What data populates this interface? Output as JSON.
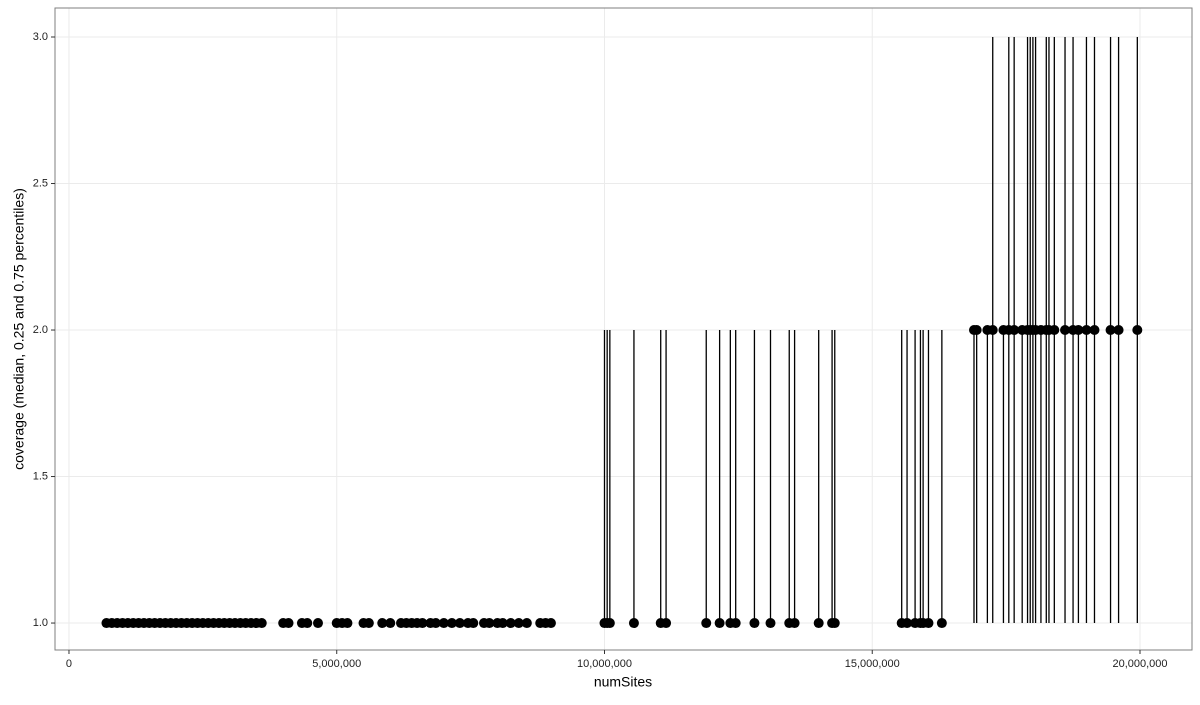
{
  "chart_data": {
    "type": "pointrange",
    "x_label": "numSites",
    "y_label": "coverage (median, 0.25 and 0.75 percentiles)",
    "x": [
      700000,
      800000,
      900000,
      1000000,
      1100000,
      1200000,
      1300000,
      1400000,
      1500000,
      1600000,
      1700000,
      1800000,
      1900000,
      2000000,
      2100000,
      2200000,
      2300000,
      2400000,
      2500000,
      2600000,
      2700000,
      2800000,
      2900000,
      3000000,
      3100000,
      3200000,
      3300000,
      3400000,
      3500000,
      3600000,
      4000000,
      4100000,
      4350000,
      4450000,
      4650000,
      5000000,
      5100000,
      5200000,
      5500000,
      5600000,
      5850000,
      6000000,
      6200000,
      6300000,
      6400000,
      6500000,
      6600000,
      6750000,
      6850000,
      7000000,
      7150000,
      7300000,
      7450000,
      7550000,
      7750000,
      7850000,
      8000000,
      8100000,
      8250000,
      8400000,
      8550000,
      8800000,
      8900000,
      9000000,
      10000000,
      10050000,
      10100000,
      10550000,
      11050000,
      11150000,
      11900000,
      12150000,
      12350000,
      12450000,
      12800000,
      13100000,
      13450000,
      13550000,
      14000000,
      14250000,
      14300000,
      15550000,
      15650000,
      15800000,
      15900000,
      15950000,
      16050000,
      16300000,
      16900000,
      16950000,
      17150000,
      17250000,
      17450000,
      17550000,
      17650000,
      17800000,
      17900000,
      17950000,
      18000000,
      18050000,
      18150000,
      18250000,
      18300000,
      18400000,
      18600000,
      18750000,
      18850000,
      19000000,
      19150000,
      19450000,
      19600000,
      19950000
    ],
    "values": [
      1,
      1,
      1,
      1,
      1,
      1,
      1,
      1,
      1,
      1,
      1,
      1,
      1,
      1,
      1,
      1,
      1,
      1,
      1,
      1,
      1,
      1,
      1,
      1,
      1,
      1,
      1,
      1,
      1,
      1,
      1,
      1,
      1,
      1,
      1,
      1,
      1,
      1,
      1,
      1,
      1,
      1,
      1,
      1,
      1,
      1,
      1,
      1,
      1,
      1,
      1,
      1,
      1,
      1,
      1,
      1,
      1,
      1,
      1,
      1,
      1,
      1,
      1,
      1,
      1,
      1,
      1,
      1,
      1,
      1,
      1,
      1,
      1,
      1,
      1,
      1,
      1,
      1,
      1,
      1,
      1,
      1,
      1,
      1,
      1,
      1,
      1,
      1,
      2,
      2,
      2,
      2,
      2,
      2,
      2,
      2,
      2,
      2,
      2,
      2,
      2,
      2,
      2,
      2,
      2,
      2,
      2,
      2,
      2,
      2,
      2,
      2
    ],
    "lower": [
      1,
      1,
      1,
      1,
      1,
      1,
      1,
      1,
      1,
      1,
      1,
      1,
      1,
      1,
      1,
      1,
      1,
      1,
      1,
      1,
      1,
      1,
      1,
      1,
      1,
      1,
      1,
      1,
      1,
      1,
      1,
      1,
      1,
      1,
      1,
      1,
      1,
      1,
      1,
      1,
      1,
      1,
      1,
      1,
      1,
      1,
      1,
      1,
      1,
      1,
      1,
      1,
      1,
      1,
      1,
      1,
      1,
      1,
      1,
      1,
      1,
      1,
      1,
      1,
      1,
      1,
      1,
      1,
      1,
      1,
      1,
      1,
      1,
      1,
      1,
      1,
      1,
      1,
      1,
      1,
      1,
      1,
      1,
      1,
      1,
      1,
      1,
      1,
      1,
      1,
      1,
      1,
      1,
      1,
      1,
      1,
      1,
      1,
      1,
      1,
      1,
      1,
      1,
      1,
      1,
      1,
      1,
      1,
      1,
      1,
      1,
      1
    ],
    "upper": [
      1,
      1,
      1,
      1,
      1,
      1,
      1,
      1,
      1,
      1,
      1,
      1,
      1,
      1,
      1,
      1,
      1,
      1,
      1,
      1,
      1,
      1,
      1,
      1,
      1,
      1,
      1,
      1,
      1,
      1,
      1,
      1,
      1,
      1,
      1,
      1,
      1,
      1,
      1,
      1,
      1,
      1,
      1,
      1,
      1,
      1,
      1,
      1,
      1,
      1,
      1,
      1,
      1,
      1,
      1,
      1,
      1,
      1,
      1,
      1,
      1,
      1,
      1,
      1,
      2,
      2,
      2,
      2,
      2,
      2,
      2,
      2,
      2,
      2,
      2,
      2,
      2,
      2,
      2,
      2,
      2,
      2,
      2,
      2,
      2,
      2,
      2,
      2,
      2,
      2,
      2,
      3,
      2,
      3,
      3,
      2,
      3,
      3,
      3,
      3,
      2,
      3,
      3,
      3,
      3,
      3,
      2,
      3,
      3,
      3,
      3,
      3
    ],
    "color": "#000000",
    "xlim": [
      -261000,
      20971000
    ],
    "ylim": [
      0.908,
      3.099
    ],
    "xticks": [
      0,
      {
        "value": 5000000,
        "label": "5,000,000"
      },
      {
        "value": 10000000,
        "label": "10,000,000"
      },
      {
        "value": 15000000,
        "label": "15,000,000"
      },
      {
        "value": 20000000,
        "label": "20,000,000"
      }
    ],
    "yticks": [
      {
        "value": 1,
        "label": "1.0"
      },
      {
        "value": 1.5,
        "label": "1.5"
      },
      {
        "value": 2,
        "label": "2.0"
      },
      {
        "value": 2.5,
        "label": "2.5"
      },
      {
        "value": 3,
        "label": "3.0"
      }
    ],
    "grid": true
  }
}
